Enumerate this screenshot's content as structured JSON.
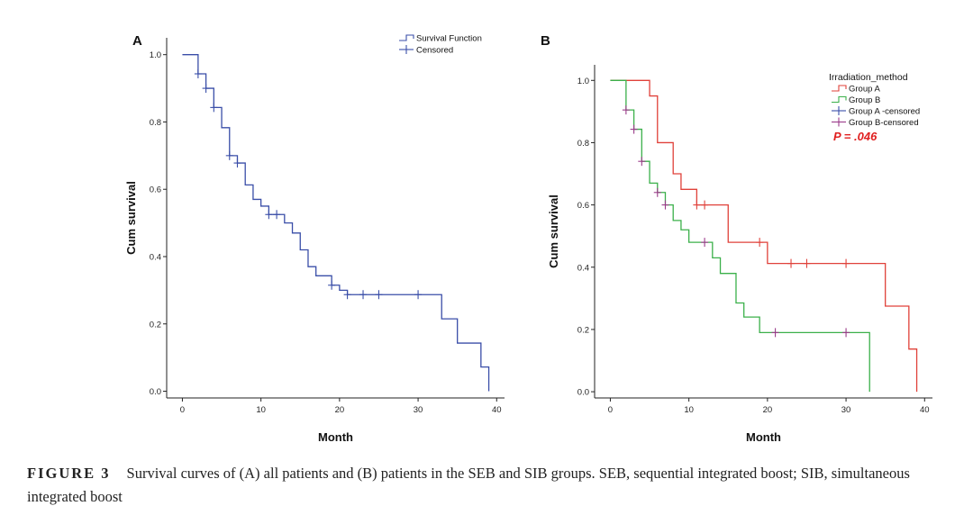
{
  "chart_data": [
    {
      "type": "line",
      "step": true,
      "panel_label": "A",
      "xlabel": "Month",
      "ylabel": "Cum survival",
      "xlim": [
        -2,
        41
      ],
      "ylim": [
        -0.02,
        1.05
      ],
      "x_ticks": [
        0,
        10,
        20,
        30,
        40
      ],
      "y_ticks": [
        0.0,
        0.2,
        0.4,
        0.6,
        0.8,
        1.0
      ],
      "grid": false,
      "legend_position": "top-right",
      "legend": [
        "Survival Function",
        "Censored"
      ],
      "series": [
        {
          "name": "Survival Function",
          "color": "#3a4ea8",
          "end_x": 39,
          "steps": [
            [
              0,
              1.0
            ],
            [
              2,
              0.943
            ],
            [
              3,
              0.9
            ],
            [
              4,
              0.843
            ],
            [
              5,
              0.783
            ],
            [
              6,
              0.7
            ],
            [
              7,
              0.678
            ],
            [
              8,
              0.613
            ],
            [
              9,
              0.57
            ],
            [
              10,
              0.55
            ],
            [
              11,
              0.525
            ],
            [
              13,
              0.5
            ],
            [
              14,
              0.47
            ],
            [
              15,
              0.42
            ],
            [
              16,
              0.37
            ],
            [
              17,
              0.343
            ],
            [
              19,
              0.315
            ],
            [
              20,
              0.3
            ],
            [
              21,
              0.287
            ],
            [
              33,
              0.215
            ],
            [
              35,
              0.143
            ],
            [
              38,
              0.072
            ],
            [
              39,
              0.0
            ]
          ],
          "censored": [
            [
              2,
              0.943
            ],
            [
              3,
              0.9
            ],
            [
              4,
              0.843
            ],
            [
              6,
              0.7
            ],
            [
              7,
              0.678
            ],
            [
              11,
              0.525
            ],
            [
              12,
              0.525
            ],
            [
              19,
              0.315
            ],
            [
              21,
              0.287
            ],
            [
              23,
              0.287
            ],
            [
              25,
              0.287
            ],
            [
              30,
              0.287
            ]
          ]
        }
      ]
    },
    {
      "type": "line",
      "step": true,
      "panel_label": "B",
      "xlabel": "Month",
      "ylabel": "Cum survival",
      "xlim": [
        -2,
        41
      ],
      "ylim": [
        -0.02,
        1.05
      ],
      "x_ticks": [
        0,
        10,
        20,
        30,
        40
      ],
      "y_ticks": [
        0.0,
        0.2,
        0.4,
        0.6,
        0.8,
        1.0
      ],
      "grid": false,
      "legend_position": "top-right",
      "legend_title": "Irradiation_method",
      "legend": [
        "Group A",
        "Group B",
        "Group A -censored",
        "Group B-censored"
      ],
      "annotation": "P = .046",
      "series": [
        {
          "name": "Group A",
          "color": "#e0413a",
          "end_x": 39,
          "steps": [
            [
              0,
              1.0
            ],
            [
              5,
              0.95
            ],
            [
              6,
              0.8
            ],
            [
              8,
              0.7
            ],
            [
              9,
              0.65
            ],
            [
              11,
              0.6
            ],
            [
              15,
              0.48
            ],
            [
              20,
              0.412
            ],
            [
              35,
              0.275
            ],
            [
              38,
              0.137
            ],
            [
              39,
              0.0
            ]
          ],
          "censored": [
            [
              11,
              0.6
            ],
            [
              12,
              0.6
            ],
            [
              19,
              0.48
            ],
            [
              23,
              0.412
            ],
            [
              25,
              0.412
            ],
            [
              30,
              0.412
            ]
          ]
        },
        {
          "name": "Group B",
          "color": "#3bb04a",
          "end_x": 33,
          "steps": [
            [
              0,
              1.0
            ],
            [
              2,
              0.905
            ],
            [
              3,
              0.843
            ],
            [
              4,
              0.74
            ],
            [
              5,
              0.67
            ],
            [
              6,
              0.64
            ],
            [
              7,
              0.6
            ],
            [
              8,
              0.55
            ],
            [
              9,
              0.52
            ],
            [
              10,
              0.48
            ],
            [
              13,
              0.43
            ],
            [
              14,
              0.38
            ],
            [
              16,
              0.285
            ],
            [
              17,
              0.24
            ],
            [
              19,
              0.19
            ],
            [
              33,
              0.0
            ]
          ],
          "censored_color": "#9b3b8a",
          "censored": [
            [
              2,
              0.905
            ],
            [
              3,
              0.843
            ],
            [
              4,
              0.74
            ],
            [
              6,
              0.64
            ],
            [
              7,
              0.6
            ],
            [
              12,
              0.48
            ],
            [
              21,
              0.19
            ],
            [
              30,
              0.19
            ]
          ]
        }
      ]
    }
  ],
  "caption": {
    "label": "FIGURE 3",
    "text": "Survival curves of (A) all patients and (B) patients in the SEB and SIB groups. SEB, sequential integrated boost; SIB, simultaneous integrated boost"
  },
  "colors": {
    "axis": "#222222",
    "annotation": "#e02020"
  }
}
